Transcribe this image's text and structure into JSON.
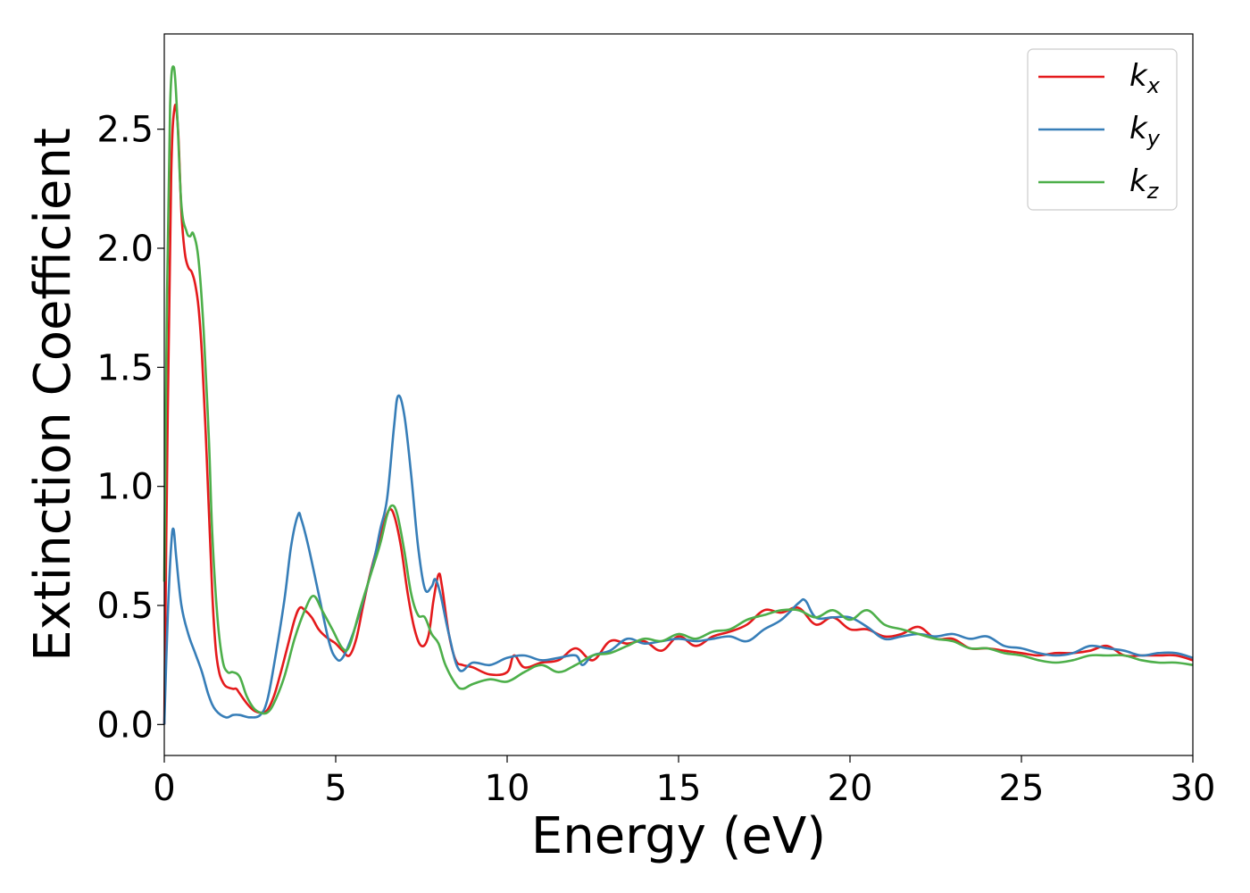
{
  "chart_data": {
    "type": "line",
    "xlabel": "Energy (eV)",
    "ylabel": "Extinction Coefficient",
    "xlim": [
      0,
      30
    ],
    "ylim": [
      -0.13,
      2.9
    ],
    "xticks": [
      0,
      5,
      10,
      15,
      20,
      25,
      30
    ],
    "xtick_labels": [
      "0",
      "5",
      "10",
      "15",
      "20",
      "25",
      "30"
    ],
    "yticks": [
      0.0,
      0.5,
      1.0,
      1.5,
      2.0,
      2.5
    ],
    "ytick_labels": [
      "0.0",
      "0.5",
      "1.0",
      "1.5",
      "2.0",
      "2.5"
    ],
    "grid": false,
    "legend_position": "top-right",
    "series": [
      {
        "name": "k_x",
        "label_main": "k",
        "label_sub": "x",
        "color": "#e41a1c",
        "points": [
          [
            0,
            0
          ],
          [
            0.1,
            1.3
          ],
          [
            0.2,
            2.3
          ],
          [
            0.3,
            2.59
          ],
          [
            0.4,
            2.5
          ],
          [
            0.5,
            2.15
          ],
          [
            0.6,
            1.98
          ],
          [
            0.7,
            1.92
          ],
          [
            0.8,
            1.9
          ],
          [
            0.9,
            1.85
          ],
          [
            1.0,
            1.75
          ],
          [
            1.1,
            1.55
          ],
          [
            1.2,
            1.25
          ],
          [
            1.3,
            0.9
          ],
          [
            1.4,
            0.55
          ],
          [
            1.5,
            0.32
          ],
          [
            1.6,
            0.22
          ],
          [
            1.7,
            0.18
          ],
          [
            1.8,
            0.16
          ],
          [
            2.0,
            0.15
          ],
          [
            2.1,
            0.15
          ],
          [
            2.2,
            0.13
          ],
          [
            2.4,
            0.09
          ],
          [
            2.6,
            0.06
          ],
          [
            2.8,
            0.05
          ],
          [
            3.0,
            0.06
          ],
          [
            3.2,
            0.12
          ],
          [
            3.4,
            0.22
          ],
          [
            3.6,
            0.33
          ],
          [
            3.8,
            0.44
          ],
          [
            3.95,
            0.49
          ],
          [
            4.1,
            0.48
          ],
          [
            4.3,
            0.45
          ],
          [
            4.5,
            0.4
          ],
          [
            4.7,
            0.37
          ],
          [
            4.9,
            0.35
          ],
          [
            5.0,
            0.34
          ],
          [
            5.2,
            0.31
          ],
          [
            5.4,
            0.29
          ],
          [
            5.6,
            0.36
          ],
          [
            5.8,
            0.5
          ],
          [
            6.0,
            0.63
          ],
          [
            6.2,
            0.74
          ],
          [
            6.4,
            0.84
          ],
          [
            6.55,
            0.9
          ],
          [
            6.7,
            0.88
          ],
          [
            6.9,
            0.75
          ],
          [
            7.1,
            0.55
          ],
          [
            7.3,
            0.4
          ],
          [
            7.5,
            0.33
          ],
          [
            7.7,
            0.37
          ],
          [
            7.85,
            0.52
          ],
          [
            8.0,
            0.63
          ],
          [
            8.1,
            0.58
          ],
          [
            8.3,
            0.38
          ],
          [
            8.5,
            0.27
          ],
          [
            8.7,
            0.25
          ],
          [
            9.0,
            0.24
          ],
          [
            9.5,
            0.21
          ],
          [
            10.0,
            0.22
          ],
          [
            10.2,
            0.29
          ],
          [
            10.5,
            0.24
          ],
          [
            11.0,
            0.26
          ],
          [
            11.5,
            0.27
          ],
          [
            12.0,
            0.32
          ],
          [
            12.5,
            0.27
          ],
          [
            13.0,
            0.35
          ],
          [
            13.5,
            0.34
          ],
          [
            14.0,
            0.35
          ],
          [
            14.5,
            0.31
          ],
          [
            15.0,
            0.37
          ],
          [
            15.5,
            0.33
          ],
          [
            16.0,
            0.37
          ],
          [
            16.5,
            0.39
          ],
          [
            17.0,
            0.42
          ],
          [
            17.5,
            0.48
          ],
          [
            18.0,
            0.47
          ],
          [
            18.5,
            0.49
          ],
          [
            19.0,
            0.42
          ],
          [
            19.5,
            0.45
          ],
          [
            20.0,
            0.4
          ],
          [
            20.5,
            0.4
          ],
          [
            21.0,
            0.37
          ],
          [
            21.5,
            0.38
          ],
          [
            22.0,
            0.41
          ],
          [
            22.5,
            0.36
          ],
          [
            23.0,
            0.36
          ],
          [
            23.5,
            0.32
          ],
          [
            24.0,
            0.32
          ],
          [
            24.5,
            0.31
          ],
          [
            25.0,
            0.3
          ],
          [
            25.5,
            0.29
          ],
          [
            26.0,
            0.3
          ],
          [
            26.5,
            0.3
          ],
          [
            27.0,
            0.31
          ],
          [
            27.5,
            0.33
          ],
          [
            28.0,
            0.29
          ],
          [
            28.5,
            0.29
          ],
          [
            29.0,
            0.29
          ],
          [
            29.5,
            0.29
          ],
          [
            30.0,
            0.27
          ]
        ]
      },
      {
        "name": "k_y",
        "label_main": "k",
        "label_sub": "y",
        "color": "#377eb8",
        "points": [
          [
            0,
            0
          ],
          [
            0.1,
            0.45
          ],
          [
            0.2,
            0.75
          ],
          [
            0.27,
            0.82
          ],
          [
            0.35,
            0.7
          ],
          [
            0.5,
            0.5
          ],
          [
            0.7,
            0.38
          ],
          [
            0.9,
            0.3
          ],
          [
            1.1,
            0.22
          ],
          [
            1.3,
            0.12
          ],
          [
            1.5,
            0.06
          ],
          [
            1.8,
            0.03
          ],
          [
            2.0,
            0.04
          ],
          [
            2.2,
            0.04
          ],
          [
            2.5,
            0.03
          ],
          [
            2.8,
            0.04
          ],
          [
            3.0,
            0.1
          ],
          [
            3.2,
            0.25
          ],
          [
            3.5,
            0.52
          ],
          [
            3.7,
            0.75
          ],
          [
            3.9,
            0.88
          ],
          [
            4.0,
            0.86
          ],
          [
            4.2,
            0.75
          ],
          [
            4.5,
            0.55
          ],
          [
            4.8,
            0.35
          ],
          [
            5.0,
            0.28
          ],
          [
            5.2,
            0.28
          ],
          [
            5.5,
            0.38
          ],
          [
            5.8,
            0.52
          ],
          [
            6.1,
            0.68
          ],
          [
            6.3,
            0.82
          ],
          [
            6.5,
            0.95
          ],
          [
            6.7,
            1.25
          ],
          [
            6.82,
            1.38
          ],
          [
            7.0,
            1.3
          ],
          [
            7.2,
            1.05
          ],
          [
            7.4,
            0.75
          ],
          [
            7.6,
            0.57
          ],
          [
            7.8,
            0.58
          ],
          [
            7.9,
            0.61
          ],
          [
            8.05,
            0.55
          ],
          [
            8.3,
            0.38
          ],
          [
            8.6,
            0.23
          ],
          [
            9.0,
            0.26
          ],
          [
            9.5,
            0.25
          ],
          [
            10.0,
            0.28
          ],
          [
            10.5,
            0.29
          ],
          [
            11.0,
            0.27
          ],
          [
            11.5,
            0.28
          ],
          [
            12.0,
            0.29
          ],
          [
            12.2,
            0.25
          ],
          [
            12.5,
            0.29
          ],
          [
            13.0,
            0.31
          ],
          [
            13.5,
            0.36
          ],
          [
            14.0,
            0.34
          ],
          [
            14.5,
            0.35
          ],
          [
            15.0,
            0.36
          ],
          [
            15.5,
            0.35
          ],
          [
            16.0,
            0.36
          ],
          [
            16.5,
            0.37
          ],
          [
            17.0,
            0.35
          ],
          [
            17.5,
            0.4
          ],
          [
            18.0,
            0.44
          ],
          [
            18.5,
            0.51
          ],
          [
            18.7,
            0.52
          ],
          [
            19.0,
            0.45
          ],
          [
            19.5,
            0.45
          ],
          [
            20.0,
            0.45
          ],
          [
            20.5,
            0.41
          ],
          [
            21.0,
            0.36
          ],
          [
            21.5,
            0.37
          ],
          [
            22.0,
            0.38
          ],
          [
            22.5,
            0.37
          ],
          [
            23.0,
            0.38
          ],
          [
            23.5,
            0.36
          ],
          [
            24.0,
            0.37
          ],
          [
            24.5,
            0.33
          ],
          [
            25.0,
            0.32
          ],
          [
            25.5,
            0.3
          ],
          [
            26.0,
            0.29
          ],
          [
            26.5,
            0.3
          ],
          [
            27.0,
            0.33
          ],
          [
            27.5,
            0.32
          ],
          [
            28.0,
            0.31
          ],
          [
            28.5,
            0.29
          ],
          [
            29.0,
            0.3
          ],
          [
            29.5,
            0.3
          ],
          [
            30.0,
            0.28
          ]
        ]
      },
      {
        "name": "k_z",
        "label_main": "k",
        "label_sub": "z",
        "color": "#4daf4a",
        "points": [
          [
            0,
            0.6
          ],
          [
            0.08,
            1.8
          ],
          [
            0.17,
            2.6
          ],
          [
            0.28,
            2.76
          ],
          [
            0.38,
            2.55
          ],
          [
            0.5,
            2.18
          ],
          [
            0.65,
            2.07
          ],
          [
            0.75,
            2.05
          ],
          [
            0.85,
            2.06
          ],
          [
            1.0,
            1.95
          ],
          [
            1.15,
            1.65
          ],
          [
            1.3,
            1.2
          ],
          [
            1.4,
            0.8
          ],
          [
            1.55,
            0.45
          ],
          [
            1.7,
            0.27
          ],
          [
            1.85,
            0.22
          ],
          [
            2.0,
            0.22
          ],
          [
            2.2,
            0.2
          ],
          [
            2.4,
            0.12
          ],
          [
            2.6,
            0.07
          ],
          [
            2.8,
            0.05
          ],
          [
            3.0,
            0.05
          ],
          [
            3.2,
            0.09
          ],
          [
            3.5,
            0.2
          ],
          [
            3.8,
            0.36
          ],
          [
            4.1,
            0.48
          ],
          [
            4.35,
            0.54
          ],
          [
            4.6,
            0.48
          ],
          [
            4.9,
            0.4
          ],
          [
            5.2,
            0.32
          ],
          [
            5.4,
            0.33
          ],
          [
            5.7,
            0.48
          ],
          [
            6.0,
            0.62
          ],
          [
            6.3,
            0.76
          ],
          [
            6.5,
            0.88
          ],
          [
            6.65,
            0.92
          ],
          [
            6.8,
            0.88
          ],
          [
            7.0,
            0.73
          ],
          [
            7.2,
            0.55
          ],
          [
            7.4,
            0.46
          ],
          [
            7.6,
            0.45
          ],
          [
            7.8,
            0.38
          ],
          [
            8.0,
            0.34
          ],
          [
            8.2,
            0.25
          ],
          [
            8.5,
            0.17
          ],
          [
            8.7,
            0.15
          ],
          [
            9.0,
            0.17
          ],
          [
            9.5,
            0.19
          ],
          [
            10.0,
            0.18
          ],
          [
            10.5,
            0.22
          ],
          [
            11.0,
            0.25
          ],
          [
            11.5,
            0.22
          ],
          [
            12.0,
            0.25
          ],
          [
            12.5,
            0.29
          ],
          [
            13.0,
            0.3
          ],
          [
            13.5,
            0.33
          ],
          [
            14.0,
            0.36
          ],
          [
            14.5,
            0.35
          ],
          [
            15.0,
            0.38
          ],
          [
            15.5,
            0.36
          ],
          [
            16.0,
            0.39
          ],
          [
            16.5,
            0.4
          ],
          [
            17.0,
            0.44
          ],
          [
            17.5,
            0.46
          ],
          [
            18.0,
            0.48
          ],
          [
            18.5,
            0.48
          ],
          [
            19.0,
            0.45
          ],
          [
            19.5,
            0.48
          ],
          [
            20.0,
            0.44
          ],
          [
            20.5,
            0.48
          ],
          [
            21.0,
            0.42
          ],
          [
            21.5,
            0.4
          ],
          [
            22.0,
            0.38
          ],
          [
            22.5,
            0.36
          ],
          [
            23.0,
            0.35
          ],
          [
            23.5,
            0.32
          ],
          [
            24.0,
            0.32
          ],
          [
            24.5,
            0.3
          ],
          [
            25.0,
            0.29
          ],
          [
            25.5,
            0.27
          ],
          [
            26.0,
            0.26
          ],
          [
            26.5,
            0.27
          ],
          [
            27.0,
            0.29
          ],
          [
            27.5,
            0.29
          ],
          [
            28.0,
            0.29
          ],
          [
            28.5,
            0.27
          ],
          [
            29.0,
            0.26
          ],
          [
            29.5,
            0.26
          ],
          [
            30.0,
            0.25
          ]
        ]
      }
    ]
  }
}
